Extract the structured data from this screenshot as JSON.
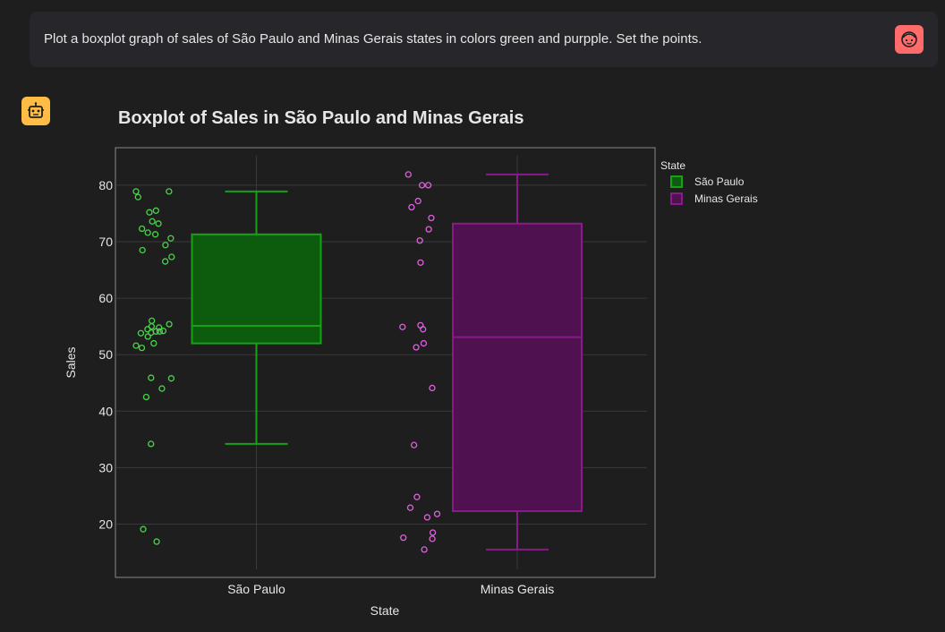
{
  "user_message": {
    "text": "Plot a boxplot graph of sales of São Paulo and Minas Gerais states in colors green and purpple. Set the points.",
    "avatar_icon": "user-face-icon"
  },
  "assistant": {
    "avatar_icon": "robot-icon"
  },
  "colors": {
    "background": "#1e1e1e",
    "panel": "#26262b",
    "user_avatar": "#ff6b6b",
    "bot_avatar": "#ffbd45",
    "green_fill": "#0d5c0d",
    "green_line": "#15a315",
    "green_point": "#4bd44b",
    "purple_fill": "#4f114f",
    "purple_line": "#8a1a8a",
    "purple_point": "#e060e0",
    "grid": "#3a3a3a",
    "axis_text": "#e6e6e6"
  },
  "chart_data": {
    "type": "box",
    "title": "Boxplot of Sales in São Paulo and Minas Gerais",
    "xlabel": "State",
    "ylabel": "Sales",
    "categories": [
      "São Paulo",
      "Minas Gerais"
    ],
    "ylim": [
      12.5,
      85
    ],
    "yticks": [
      20,
      30,
      40,
      50,
      60,
      70,
      80
    ],
    "grid": true,
    "legend": {
      "title": "State",
      "placement": "top-right"
    },
    "series": [
      {
        "name": "São Paulo",
        "color": "green",
        "box": {
          "lower_whisker": 34.2,
          "q1": 52.0,
          "median": 55.1,
          "q3": 71.3,
          "upper_whisker": 78.9
        },
        "points": [
          78.9,
          78.9,
          77.9,
          75.5,
          75.2,
          73.6,
          73.2,
          72.3,
          71.6,
          71.3,
          70.6,
          69.4,
          68.5,
          67.3,
          66.5,
          56.0,
          55.4,
          55.0,
          54.8,
          54.5,
          54.2,
          54.1,
          54.1,
          53.9,
          53.8,
          53.2,
          52.0,
          51.6,
          51.2,
          45.9,
          45.8,
          44.0,
          42.5,
          34.2,
          19.1,
          16.9
        ]
      },
      {
        "name": "Minas Gerais",
        "color": "purple",
        "box": {
          "lower_whisker": 15.5,
          "q1": 22.3,
          "median": 53.1,
          "q3": 73.2,
          "upper_whisker": 81.9
        },
        "points": [
          81.9,
          80.0,
          80.0,
          77.2,
          76.1,
          74.2,
          72.2,
          70.2,
          66.3,
          55.2,
          54.9,
          54.5,
          52.0,
          51.3,
          44.1,
          34.0,
          24.8,
          22.9,
          21.8,
          21.2,
          18.5,
          17.4,
          17.6,
          15.5
        ]
      }
    ]
  }
}
